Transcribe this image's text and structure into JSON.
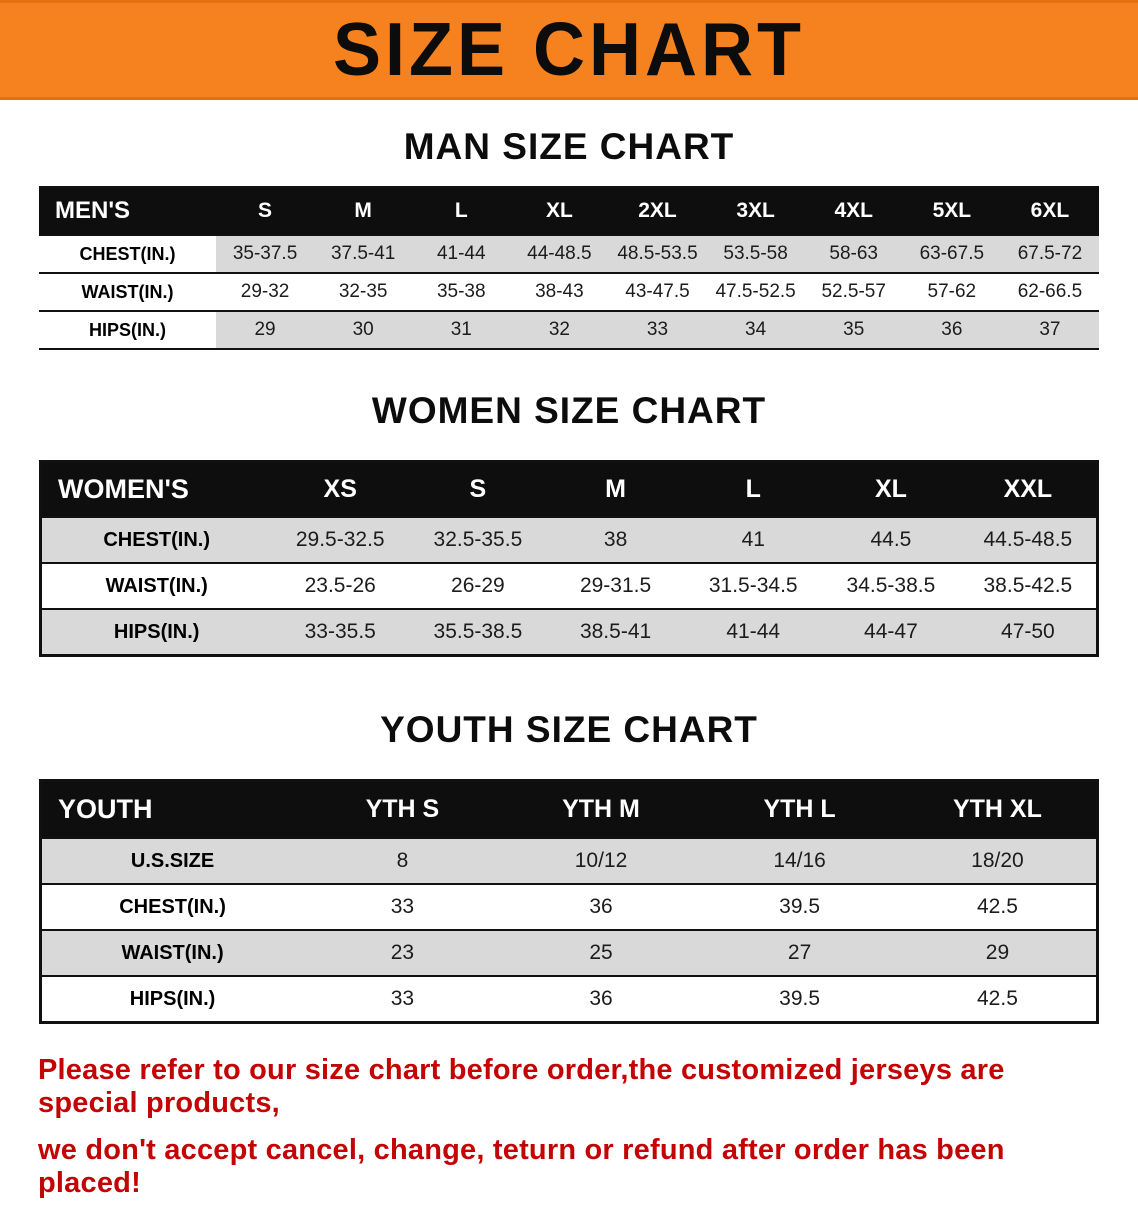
{
  "banner": {
    "title": "SIZE CHART"
  },
  "sections": {
    "men": {
      "heading": "MAN SIZE CHART"
    },
    "women": {
      "heading": "WOMEN SIZE CHART"
    },
    "youth": {
      "heading": "YOUTH SIZE CHART"
    }
  },
  "tables": {
    "men": {
      "header": [
        "MEN'S",
        "S",
        "M",
        "L",
        "XL",
        "2XL",
        "3XL",
        "4XL",
        "5XL",
        "6XL"
      ],
      "rows": [
        [
          "CHEST(IN.)",
          "35-37.5",
          "37.5-41",
          "41-44",
          "44-48.5",
          "48.5-53.5",
          "53.5-58",
          "58-63",
          "63-67.5",
          "67.5-72"
        ],
        [
          "WAIST(IN.)",
          "29-32",
          "32-35",
          "35-38",
          "38-43",
          "43-47.5",
          "47.5-52.5",
          "52.5-57",
          "57-62",
          "62-66.5"
        ],
        [
          "HIPS(IN.)",
          "29",
          "30",
          "31",
          "32",
          "33",
          "34",
          "35",
          "36",
          "37"
        ]
      ]
    },
    "women": {
      "header": [
        "WOMEN'S",
        "XS",
        "S",
        "M",
        "L",
        "XL",
        "XXL"
      ],
      "rows": [
        [
          "CHEST(IN.)",
          "29.5-32.5",
          "32.5-35.5",
          "38",
          "41",
          "44.5",
          "44.5-48.5"
        ],
        [
          "WAIST(IN.)",
          "23.5-26",
          "26-29",
          "29-31.5",
          "31.5-34.5",
          "34.5-38.5",
          "38.5-42.5"
        ],
        [
          "HIPS(IN.)",
          "33-35.5",
          "35.5-38.5",
          "38.5-41",
          "41-44",
          "44-47",
          "47-50"
        ]
      ]
    },
    "youth": {
      "header": [
        "YOUTH",
        "YTH S",
        "YTH M",
        "YTH L",
        "YTH XL"
      ],
      "rows": [
        [
          "U.S.SIZE",
          "8",
          "10/12",
          "14/16",
          "18/20"
        ],
        [
          "CHEST(IN.)",
          "33",
          "36",
          "39.5",
          "42.5"
        ],
        [
          "WAIST(IN.)",
          "23",
          "25",
          "27",
          "29"
        ],
        [
          "HIPS(IN.)",
          "33",
          "36",
          "39.5",
          "42.5"
        ]
      ]
    }
  },
  "footer": {
    "line1": "Please refer to our size chart before order,the customized jerseys are special products,",
    "line2": "we don't accept cancel, change, teturn or refund after order has been placed!"
  },
  "colors": {
    "banner_bg": "#f6821f",
    "header_bar": "#0e0e0e",
    "row_stripe": "#d9d9d9",
    "disclaimer_text": "#c40404"
  }
}
